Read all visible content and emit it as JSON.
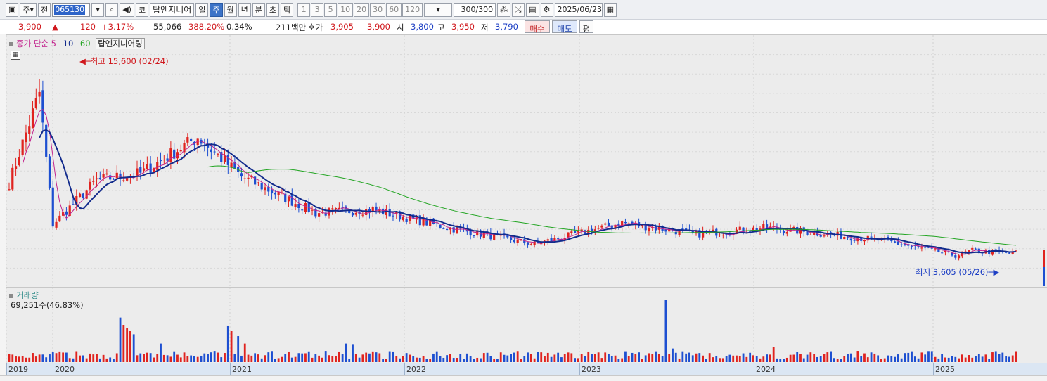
{
  "toolbar": {
    "type_label": "주",
    "prev_label": "전",
    "code": "065130",
    "sound_icon": "speaker-icon",
    "market_badge": "코",
    "stock_name": "탑엔지니어",
    "periods": [
      "일",
      "주",
      "월",
      "년",
      "분",
      "초",
      "틱"
    ],
    "active_period": "주",
    "intervals": [
      "1",
      "3",
      "5",
      "10",
      "20",
      "30",
      "60",
      "120"
    ],
    "count": "300",
    "count_total": "/300",
    "date": "2025/06/23"
  },
  "quote": {
    "price": "3,900",
    "change_arrow": "▲",
    "change": "120",
    "change_pct": "+3.17%",
    "volume": "55,066",
    "volume_ratio": "388.20%",
    "turnover": "0.34%",
    "amount": "211백만",
    "hoga_label": "호가",
    "ask": "3,905",
    "bid": "3,900",
    "open_label": "시",
    "open": "3,800",
    "high_label": "고",
    "high": "3,950",
    "low_label": "저",
    "low": "3,790",
    "buy_button": "매수",
    "sell_button": "매도",
    "eval_button": "평"
  },
  "price_panel": {
    "legend_title": "종가 단순",
    "ma_labels": [
      "5",
      "10",
      "60"
    ],
    "stock_label": "탑엔지니어링",
    "high_note": "최고 15,600 (02/24)",
    "low_note": "최저 3,605 (05/26)"
  },
  "volume_panel": {
    "legend_title": "거래량",
    "value": "69,251주(46.83%)"
  },
  "colors": {
    "up": "#e0231f",
    "down": "#1d4fd1",
    "ma5": "#c2238d",
    "ma10": "#122b8c",
    "ma60": "#23a523"
  },
  "chart_data": {
    "type": "candlestick",
    "x_labels": [
      "2019",
      "2020",
      "2021",
      "2022",
      "2023",
      "2024",
      "2025"
    ],
    "price_anchors": [
      {
        "date": "2019-12",
        "close": 8000
      },
      {
        "date": "2020-02",
        "close": 13500,
        "high": 15600
      },
      {
        "date": "2020-03",
        "close": 5500
      },
      {
        "date": "2020-06",
        "close": 8200
      },
      {
        "date": "2020-09",
        "close": 8600
      },
      {
        "date": "2021-01",
        "close": 10800
      },
      {
        "date": "2021-04",
        "close": 8400
      },
      {
        "date": "2021-09",
        "close": 6200
      },
      {
        "date": "2022-01",
        "close": 6400
      },
      {
        "date": "2022-06",
        "close": 5300
      },
      {
        "date": "2022-12",
        "close": 4300
      },
      {
        "date": "2023-06",
        "close": 5600
      },
      {
        "date": "2023-11",
        "close": 4900
      },
      {
        "date": "2024-04",
        "close": 5300
      },
      {
        "date": "2024-12",
        "close": 4500
      },
      {
        "date": "2025-05",
        "close": 3605
      },
      {
        "date": "2025-06",
        "close": 3900
      }
    ],
    "high": {
      "value": 15600,
      "date": "02/24"
    },
    "low": {
      "value": 3605,
      "date": "05/26"
    },
    "ma_periods": [
      5,
      10,
      60
    ],
    "volume_last": 69251
  }
}
